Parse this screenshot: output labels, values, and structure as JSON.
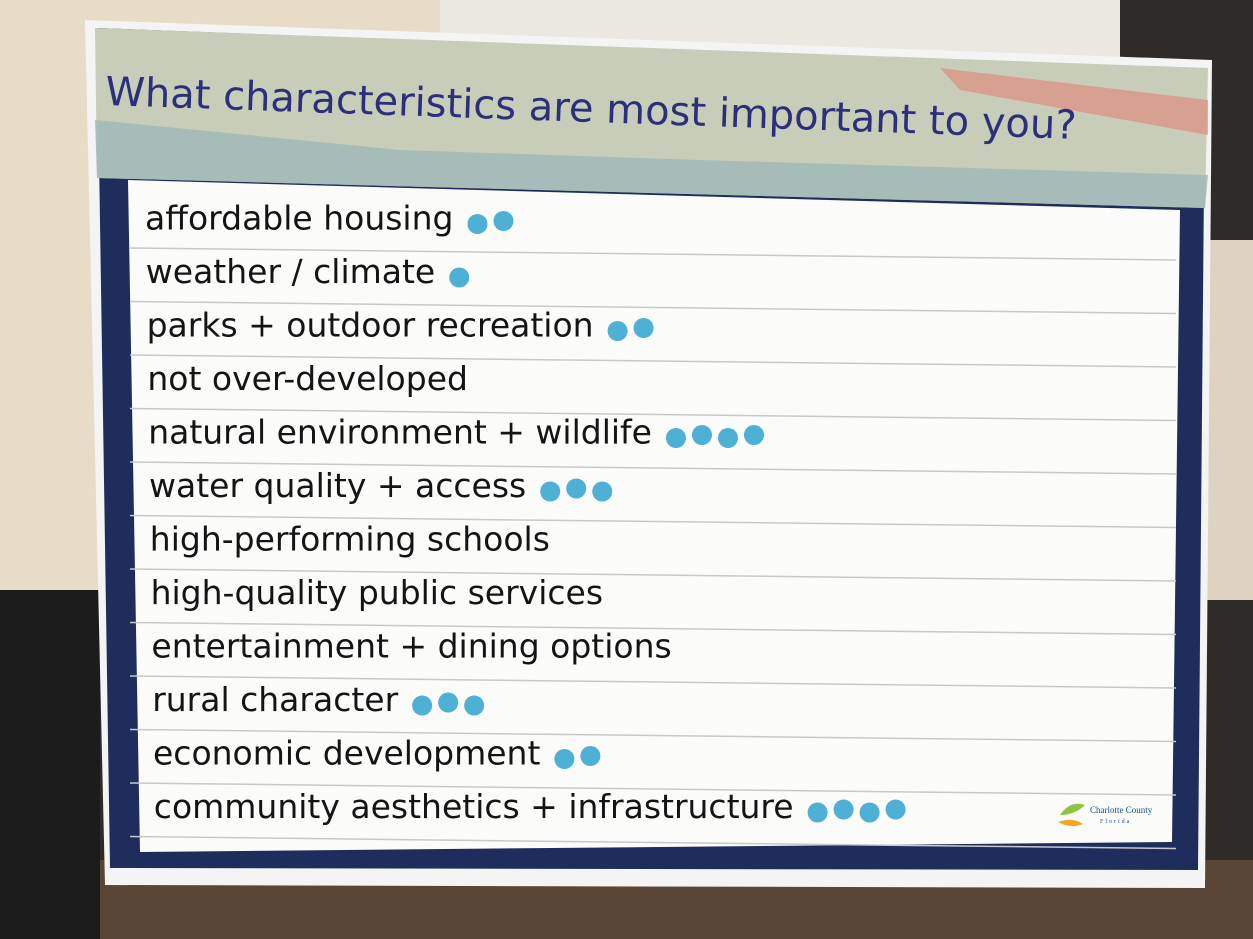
{
  "header": {
    "title": "What characteristics are most important to you?"
  },
  "list": {
    "items": [
      {
        "label": "affordable housing",
        "dots": 2
      },
      {
        "label": "weather / climate",
        "dots": 1
      },
      {
        "label": "parks + outdoor recreation",
        "dots": 2
      },
      {
        "label": "not over-developed",
        "dots": 0
      },
      {
        "label": "natural environment + wildlife",
        "dots": 4
      },
      {
        "label": "water quality + access",
        "dots": 3
      },
      {
        "label": "high-performing schools",
        "dots": 0
      },
      {
        "label": "high-quality public services",
        "dots": 0
      },
      {
        "label": "entertainment + dining options",
        "dots": 0
      },
      {
        "label": "rural character",
        "dots": 3
      },
      {
        "label": "economic development",
        "dots": 2
      },
      {
        "label": "community aesthetics + infrastructure",
        "dots": 4
      }
    ]
  },
  "logo": {
    "name": "Charlotte County",
    "place": "Florida"
  }
}
